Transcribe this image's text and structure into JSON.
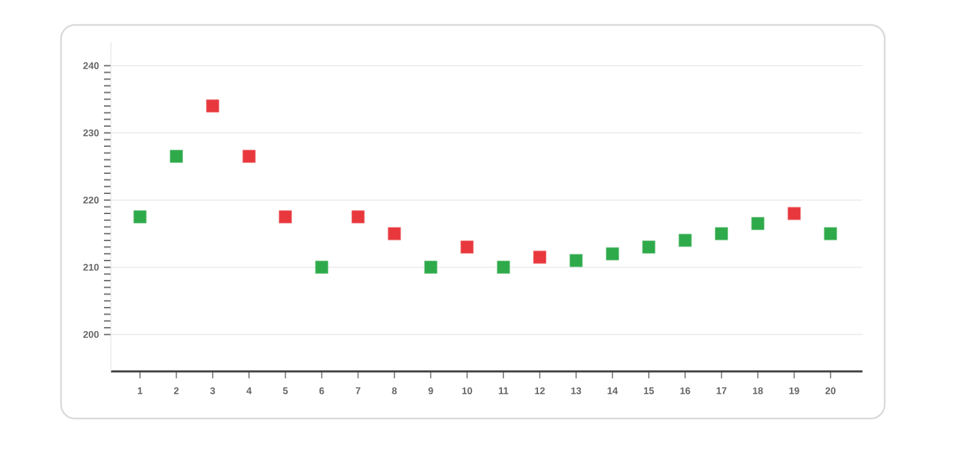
{
  "chart_data": {
    "type": "scatter",
    "categories": [
      "1",
      "2",
      "3",
      "4",
      "5",
      "6",
      "7",
      "8",
      "9",
      "10",
      "11",
      "12",
      "13",
      "14",
      "15",
      "16",
      "17",
      "18",
      "19",
      "20"
    ],
    "series": [
      {
        "color": "#2eaa4a",
        "values": [
          217.5,
          226.5,
          null,
          null,
          null,
          210,
          null,
          null,
          210,
          null,
          210,
          null,
          211,
          212,
          213,
          214,
          215,
          216.5,
          null,
          215
        ]
      },
      {
        "color": "#e8383d",
        "values": [
          null,
          null,
          234,
          226.5,
          217.5,
          null,
          217.5,
          215,
          null,
          213,
          null,
          211.5,
          null,
          null,
          null,
          null,
          null,
          null,
          218,
          null
        ]
      }
    ],
    "ylim": [
      194.5,
      243.5
    ],
    "yticks": [
      200,
      210,
      220,
      230,
      240
    ],
    "grid": "y",
    "marker": "square"
  }
}
